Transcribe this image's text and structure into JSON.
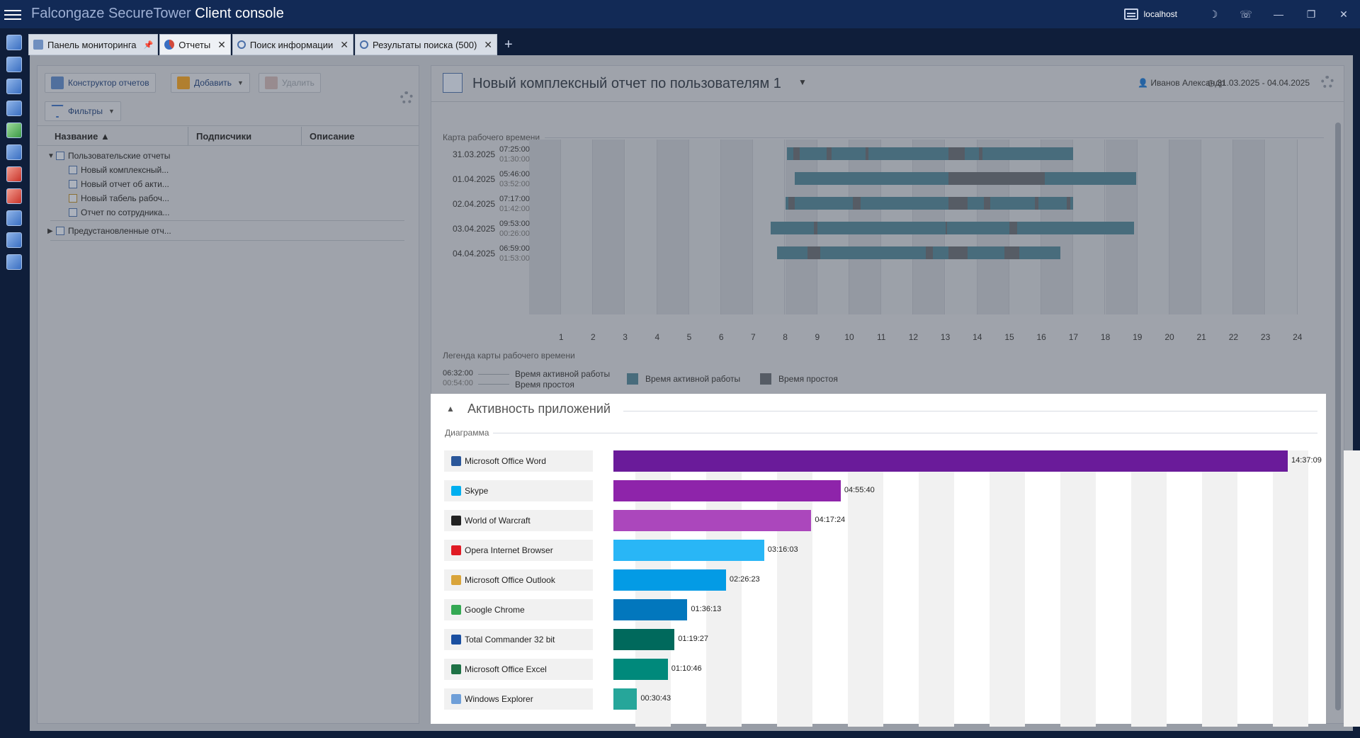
{
  "app": {
    "title_main": "Falcongaze SecureTower",
    "title_sub": "Client console",
    "server": "localhost"
  },
  "tabs": [
    {
      "label": "Панель мониторинга",
      "pinned": true
    },
    {
      "label": "Отчеты",
      "active": true
    },
    {
      "label": "Поиск информации"
    },
    {
      "label": "Результаты поиска (500)"
    }
  ],
  "toolbar": {
    "constructor_label": "Конструктор отчетов",
    "add_label": "Добавить",
    "delete_label": "Удалить",
    "filters_label": "Фильтры"
  },
  "report_list": {
    "columns": [
      "Название",
      "Подписчики",
      "Описание"
    ],
    "groups": [
      {
        "label": "Пользовательские отчеты",
        "expanded": true,
        "items": [
          "Новый комплексный...",
          "Новый отчет об акти...",
          "Новый табель рабоч...",
          "Отчет по сотрудника..."
        ]
      },
      {
        "label": "Предустановленные отч...",
        "expanded": false,
        "items": []
      }
    ]
  },
  "report": {
    "title": "Новый комплексный отчет по пользователям 1",
    "user": "Иванов Александр",
    "period": "31.03.2025 - 04.04.2025"
  },
  "worktime_map": {
    "section_label": "Карта рабочего времени",
    "hours": [
      "1",
      "2",
      "3",
      "4",
      "5",
      "6",
      "7",
      "8",
      "9",
      "10",
      "11",
      "12",
      "13",
      "14",
      "15",
      "16",
      "17",
      "18",
      "19",
      "20",
      "21",
      "22",
      "23",
      "24"
    ],
    "days": [
      {
        "date": "31.03.2025",
        "active": "07:25:00",
        "idle": "01:30:00"
      },
      {
        "date": "01.04.2025",
        "active": "05:46:00",
        "idle": "03:52:00"
      },
      {
        "date": "02.04.2025",
        "active": "07:17:00",
        "idle": "01:42:00"
      },
      {
        "date": "03.04.2025",
        "active": "09:53:00",
        "idle": "00:26:00"
      },
      {
        "date": "04.04.2025",
        "active": "06:59:00",
        "idle": "01:53:00"
      }
    ],
    "legend_label": "Легенда карты рабочего времени",
    "legend_sample_active": "06:32:00",
    "legend_sample_idle": "00:54:00",
    "legend_active": "Время активной работы",
    "legend_idle": "Время простоя",
    "color_active": "#4f8396",
    "color_idle": "#656a72"
  },
  "app_activity": {
    "title": "Активность приложений",
    "diagram_label": "Диаграмма"
  },
  "chart_data": {
    "type": "bar",
    "orientation": "horizontal",
    "categories": [
      "Microsoft Office Word",
      "Skype",
      "World of Warcraft",
      "Opera Internet Browser",
      "Microsoft Office Outlook",
      "Google Chrome",
      "Total Commander 32 bit",
      "Microsoft Office Excel",
      "Windows Explorer"
    ],
    "labels": [
      "14:37:09",
      "04:55:40",
      "04:17:24",
      "03:16:03",
      "02:26:23",
      "01:36:13",
      "01:19:27",
      "01:10:46",
      "00:30:43"
    ],
    "values_seconds": [
      52629,
      17740,
      15444,
      11763,
      8783,
      5773,
      4767,
      4246,
      1843
    ],
    "colors": [
      "#6a1b9a",
      "#8e24aa",
      "#ab47bc",
      "#29b6f6",
      "#039be5",
      "#0277bd",
      "#00695c",
      "#00897b",
      "#26a69a"
    ],
    "icons": [
      "word-icon",
      "skype-icon",
      "warcraft-icon",
      "opera-icon",
      "outlook-icon",
      "chrome-icon",
      "totalcmd-icon",
      "excel-icon",
      "explorer-icon"
    ]
  }
}
